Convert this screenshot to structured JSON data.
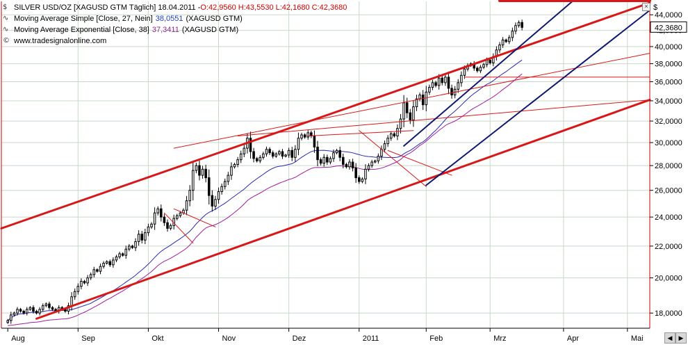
{
  "legend": {
    "line1_prefix": "SILVER USD/OZ [XAGUSD GTM  Täglich] 18.04.2011 - ",
    "line1_ohlc": "O:42,9560 H:43,5530 L:42,1680 C:42,3680",
    "line2_prefix": "Moving Average Simple [Close, 27, Nein]",
    "line2_value": "38,0551",
    "line2_suffix": "(XAGUSD GTM)",
    "line3_prefix": "Moving Average Exponential [Close, 38]",
    "line3_value": "37,3411",
    "line3_suffix": "(XAGUSD GTM)",
    "line4": "www.tradesignalonline.com"
  },
  "axis_currency": "$",
  "close_marker": "42,3680",
  "close_value": 42.368,
  "colors": {
    "channel": "#d81818",
    "blue_channel": "#101870",
    "sma": "#2a2ab0",
    "ema": "#a01ca0",
    "candle": "#000000",
    "grid": "#c8d8c8",
    "panel_border": "#cc0000"
  },
  "chart_data": {
    "type": "candlestick",
    "y_axis": {
      "min": 17.2,
      "max": 45.8,
      "ticks": [
        18,
        20,
        22,
        24,
        26,
        28,
        30,
        32,
        34,
        36,
        38,
        40,
        42,
        44
      ],
      "tick_labels": [
        "18,0000",
        "20,0000",
        "22,0000",
        "24,0000",
        "26,0000",
        "28,0000",
        "30,0000",
        "32,0000",
        "34,0000",
        "36,0000",
        "38,0000",
        "40,0000",
        "42,0000",
        "44,0000"
      ],
      "scale": "log",
      "position": "right"
    },
    "x_axis": {
      "labels": [
        "Aug",
        "Sep",
        "Okt",
        "Nov",
        "Dez",
        "2011",
        "Feb",
        "Mrz",
        "Apr",
        "Mai"
      ]
    },
    "month_markers": [
      {
        "label": "Aug",
        "t": 0
      },
      {
        "label": "Sep",
        "t": 22
      },
      {
        "label": "Okt",
        "t": 44
      },
      {
        "label": "Nov",
        "t": 66
      },
      {
        "label": "Dez",
        "t": 88
      },
      {
        "label": "2011",
        "t": 110
      },
      {
        "label": "Feb",
        "t": 131
      },
      {
        "label": "Mrz",
        "t": 151
      },
      {
        "label": "Apr",
        "t": 174
      },
      {
        "label": "Mai",
        "t": 194
      }
    ],
    "close": [
      17.6,
      17.9,
      18.0,
      18.2,
      18.1,
      18.0,
      18.2,
      18.3,
      18.1,
      18.0,
      18.2,
      18.4,
      18.5,
      18.3,
      18.2,
      18.1,
      18.3,
      18.2,
      18.1,
      18.4,
      18.9,
      19.2,
      19.5,
      19.8,
      19.7,
      20.0,
      20.2,
      20.5,
      20.4,
      20.7,
      20.9,
      21.0,
      20.8,
      21.1,
      21.3,
      21.5,
      21.4,
      21.8,
      22.0,
      21.9,
      22.3,
      22.8,
      22.4,
      22.9,
      23.3,
      23.5,
      24.3,
      24.6,
      24.0,
      23.6,
      23.2,
      23.4,
      23.9,
      24.1,
      24.3,
      24.5,
      25.2,
      26.0,
      27.6,
      28.0,
      27.2,
      27.7,
      27.0,
      25.6,
      24.8,
      25.3,
      25.9,
      26.3,
      26.7,
      27.2,
      27.9,
      28.1,
      28.5,
      29.0,
      29.5,
      30.4,
      29.2,
      28.6,
      28.4,
      28.7,
      29.0,
      29.4,
      29.1,
      28.8,
      29.0,
      29.2,
      28.8,
      28.9,
      29.3,
      28.7,
      29.4,
      30.4,
      30.7,
      30.5,
      30.9,
      30.6,
      29.6,
      28.5,
      28.2,
      28.7,
      28.3,
      28.6,
      29.1,
      29.3,
      28.7,
      28.1,
      27.9,
      28.3,
      27.8,
      27.0,
      26.7,
      26.9,
      27.7,
      28.0,
      28.3,
      28.4,
      28.8,
      29.4,
      29.9,
      30.4,
      30.8,
      30.6,
      31.3,
      32.2,
      33.8,
      32.8,
      32.1,
      33.4,
      34.2,
      34.6,
      33.6,
      34.9,
      35.4,
      35.9,
      35.6,
      36.4,
      35.9,
      36.5,
      35.3,
      34.6,
      35.2,
      35.9,
      36.7,
      37.4,
      37.8,
      38.0,
      37.5,
      37.2,
      37.6,
      37.9,
      38.4,
      38.1,
      38.8,
      39.6,
      40.2,
      40.8,
      40.6,
      41.1,
      41.9,
      42.6,
      43.0,
      42.37
    ],
    "sma": {
      "name": "Moving Average Simple [Close, 27, Nein]",
      "last": 38.0551,
      "period": 27
    },
    "ema": {
      "name": "Moving Average Exponential [Close, 38]",
      "last": 37.3411,
      "period": 38
    },
    "trendlines": [
      {
        "kind": "channel",
        "color": "red",
        "width": 3,
        "from": [
          -2,
          23.2
        ],
        "to": [
          201,
          45.6
        ]
      },
      {
        "kind": "channel",
        "color": "red",
        "width": 3,
        "from": [
          9,
          17.7
        ],
        "to": [
          201,
          34.1
        ]
      },
      {
        "kind": "thin",
        "color": "red",
        "width": 1,
        "from": [
          52,
          29.5
        ],
        "to": [
          201,
          39.2
        ]
      },
      {
        "kind": "thin",
        "color": "red",
        "width": 1,
        "from": [
          72,
          30.6
        ],
        "to": [
          201,
          34.1
        ]
      },
      {
        "kind": "thin",
        "color": "red",
        "width": 1,
        "from": [
          94,
          30.6
        ],
        "to": [
          127,
          31.1
        ]
      },
      {
        "kind": "thin",
        "color": "red",
        "width": 1,
        "from": [
          143,
          36.5
        ],
        "to": [
          201,
          36.5
        ]
      },
      {
        "kind": "thin",
        "color": "red",
        "width": 1,
        "from": [
          110,
          31.1
        ],
        "to": [
          131,
          26.3
        ]
      },
      {
        "kind": "thin",
        "color": "red",
        "width": 1,
        "from": [
          119,
          29.3
        ],
        "to": [
          139,
          27.2
        ]
      },
      {
        "kind": "thin",
        "color": "red",
        "width": 1,
        "from": [
          52,
          24.6
        ],
        "to": [
          65,
          23.3
        ]
      },
      {
        "kind": "thin",
        "color": "red",
        "width": 1,
        "from": [
          49,
          24.3
        ],
        "to": [
          58,
          22.2
        ]
      },
      {
        "kind": "channel",
        "color": "blue",
        "width": 2,
        "from": [
          124,
          29.7
        ],
        "to": [
          177,
          45.9
        ]
      },
      {
        "kind": "channel",
        "color": "blue",
        "width": 2,
        "from": [
          131,
          26.4
        ],
        "to": [
          201,
          44.6
        ]
      },
      {
        "kind": "thin",
        "color": "red",
        "width": 4,
        "from": [
          154,
          45.9
        ],
        "to": [
          201,
          45.9
        ]
      }
    ]
  }
}
